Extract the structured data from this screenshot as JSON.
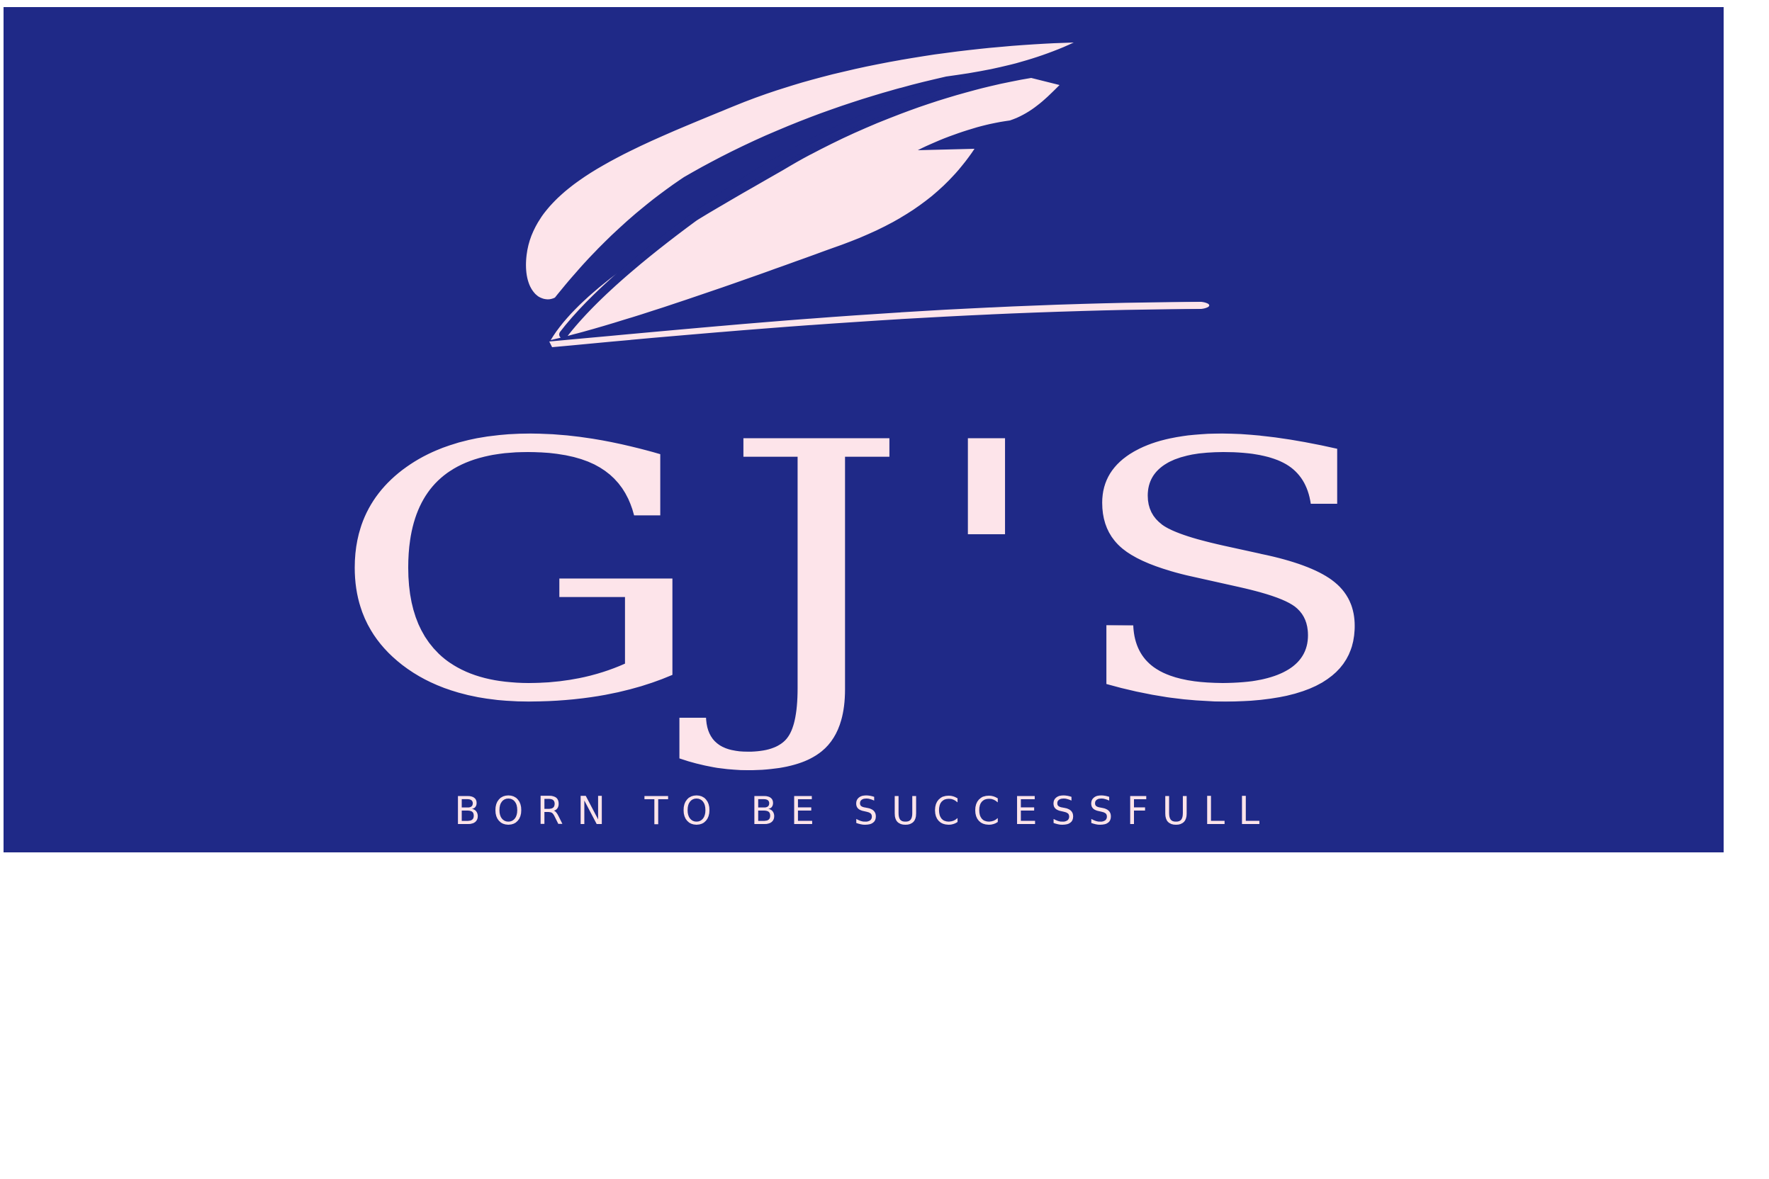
{
  "logo": {
    "wordmark": "GJ'S",
    "tagline": "BORN TO BE SUCCESSFULL",
    "icon": "feather-icon",
    "colors": {
      "background": "#1f2987",
      "foreground": "#fde4ea",
      "page": "#ffffff"
    }
  }
}
